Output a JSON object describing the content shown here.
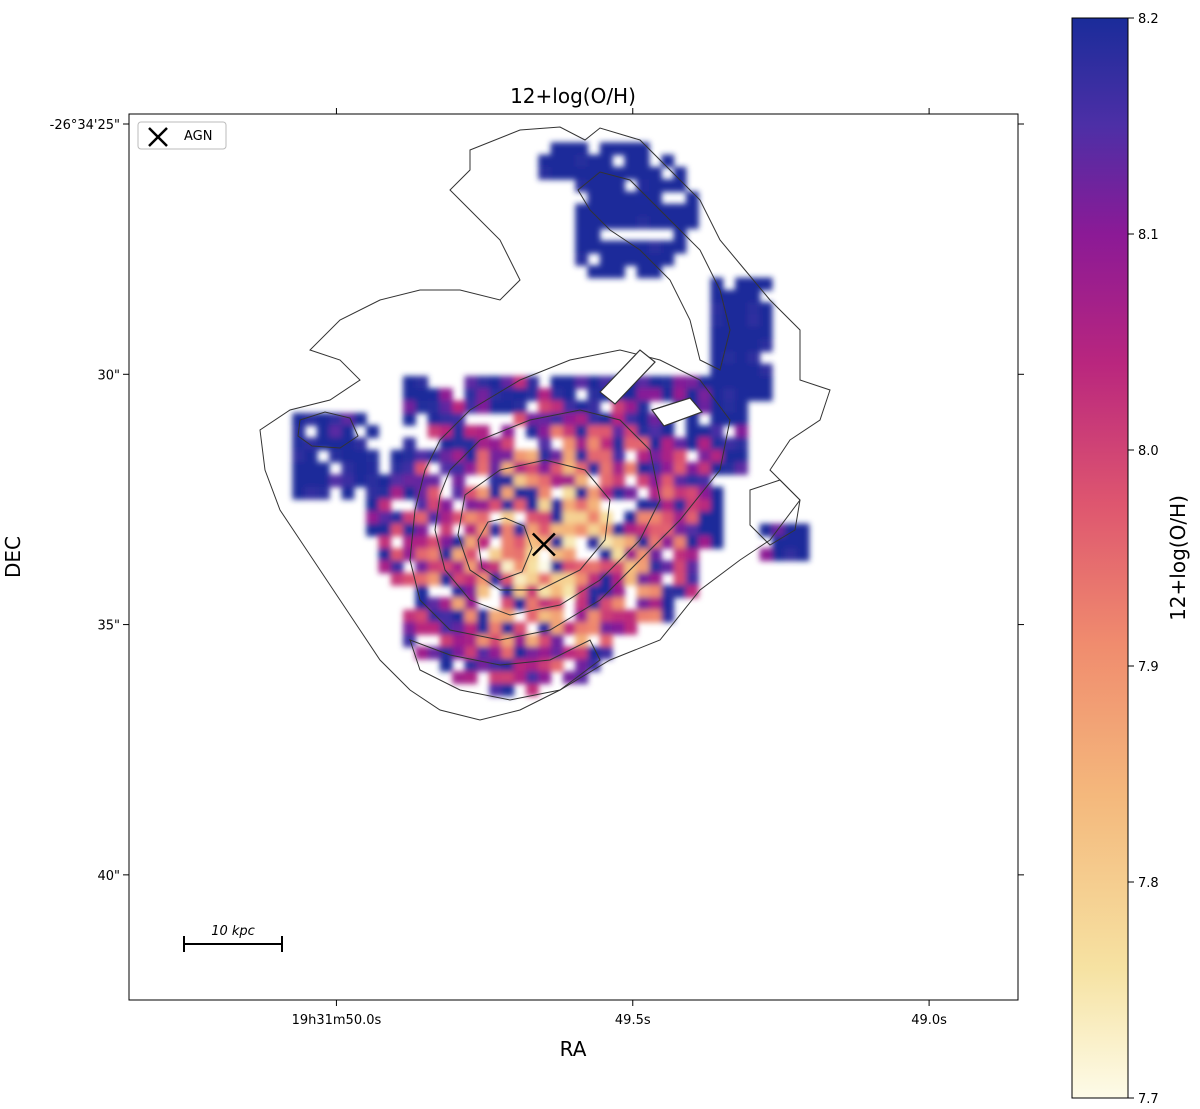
{
  "chart_data": {
    "type": "heatmap",
    "title": "12+log(O/H)",
    "xlabel": "RA",
    "ylabel": "DEC",
    "x_ticks": [
      {
        "value": 50.0,
        "label": "19h31m50.0s"
      },
      {
        "value": 49.5,
        "label": "49.5s"
      },
      {
        "value": 49.0,
        "label": "49.0s"
      }
    ],
    "y_ticks": [
      {
        "value": 25,
        "label": "-26°34'25\""
      },
      {
        "value": 30,
        "label": "30\""
      },
      {
        "value": 35,
        "label": "35\""
      },
      {
        "value": 40,
        "label": "40\""
      }
    ],
    "ra_range_s": [
      50.35,
      48.85
    ],
    "dec_range_arcsec": [
      24.8,
      42.5
    ],
    "colorbar": {
      "label": "12+log(O/H)",
      "min": 7.7,
      "max": 8.2,
      "ticks": [
        {
          "value": 8.2,
          "label": "8.2"
        },
        {
          "value": 8.1,
          "label": "8.1"
        },
        {
          "value": 8.0,
          "label": "8.0"
        },
        {
          "value": 7.9,
          "label": "7.9"
        },
        {
          "value": 7.8,
          "label": "7.8"
        },
        {
          "value": 7.7,
          "label": "7.7"
        }
      ],
      "colors": [
        "#fdfbe8",
        "#f6e2a2",
        "#f4b87c",
        "#f08c6e",
        "#de566f",
        "#b9267e",
        "#8b1a96",
        "#4d2fa6",
        "#1a2c9a"
      ]
    },
    "legend": {
      "marker": "x",
      "label": "AGN",
      "position": "top-left"
    },
    "agn": {
      "ra_s": 49.65,
      "dec_arcsec": 33.4
    },
    "scale_bar": {
      "label": "10 kpc"
    }
  }
}
